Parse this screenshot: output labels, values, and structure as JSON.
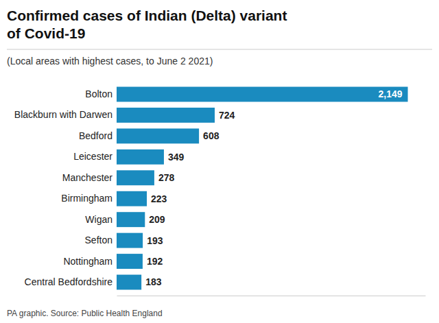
{
  "chart_data": {
    "type": "bar",
    "orientation": "horizontal",
    "title": [
      "Confirmed cases of Indian (Delta) variant",
      "of Covid-19"
    ],
    "subtitle": "(Local areas with highest cases, to June 2 2021)",
    "annotations": [
      "PA graphic. Source: Public Health England"
    ],
    "categories": [
      "Central Bedfordshire",
      "Nottingham",
      "Sefton",
      "Wigan",
      "Birmingham",
      "Manchester",
      "Leicester",
      "Bedford",
      "Blackburn with Darwen",
      "Bolton"
    ],
    "values": [
      183,
      192,
      193,
      209,
      223,
      278,
      349,
      608,
      724,
      2149
    ],
    "value_labels": [
      "183",
      "192",
      "193",
      "209",
      "223",
      "278",
      "349",
      "608",
      "724",
      "2,149"
    ],
    "color": "#1a8bbf",
    "xlim": [
      0,
      2277.94
    ],
    "data_labels": true,
    "tick_labels": "y",
    "grid": false
  }
}
